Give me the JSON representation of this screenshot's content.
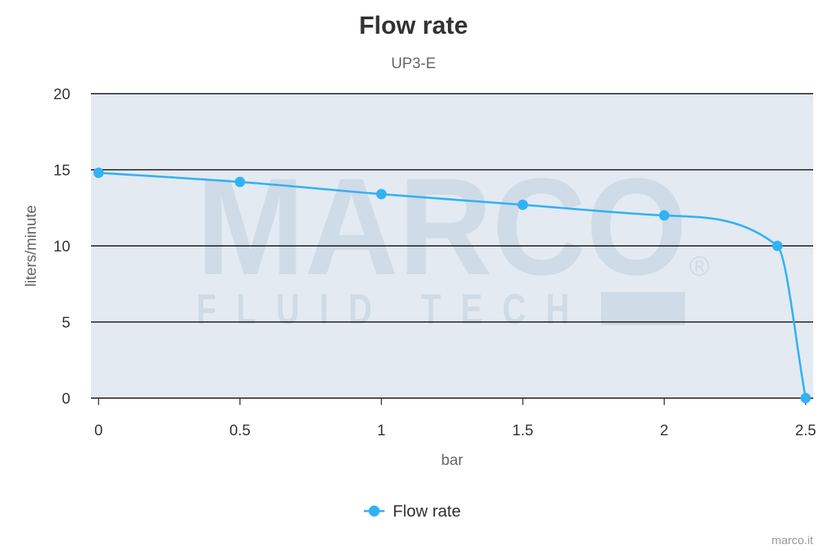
{
  "chart_data": {
    "type": "line",
    "title": "Flow rate",
    "subtitle": "UP3-E",
    "xlabel": "bar",
    "ylabel": "liters/minute",
    "xlim": [
      0,
      2.5
    ],
    "ylim": [
      0,
      20
    ],
    "x_ticks": [
      "0",
      "0.5",
      "1",
      "1.5",
      "2",
      "2.5"
    ],
    "y_ticks": [
      "0",
      "5",
      "10",
      "15",
      "20"
    ],
    "grid": true,
    "legend_position": "bottom-center",
    "series": [
      {
        "name": "Flow rate",
        "color": "#33b1f5",
        "x": [
          0,
          0.5,
          1,
          1.5,
          2,
          2.4,
          2.5
        ],
        "y": [
          14.8,
          14.2,
          13.4,
          12.7,
          12,
          10,
          0
        ]
      }
    ]
  },
  "watermark": {
    "brand": "MARCO",
    "tagline": "FLUID TECH",
    "mark": "®"
  },
  "credits": "marco.it",
  "colors": {
    "plot_background": "#e3eaf1",
    "grid_line": "#000000",
    "series": "#33b1f5",
    "watermark": "#cfdbe6"
  }
}
